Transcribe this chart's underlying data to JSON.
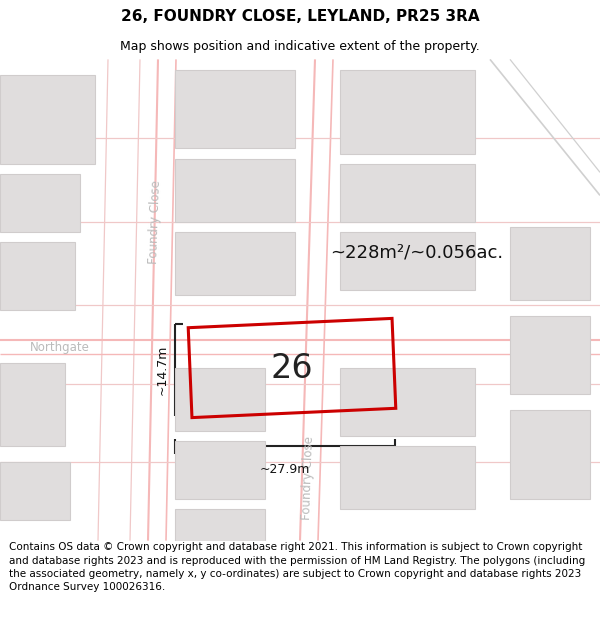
{
  "title": "26, FOUNDRY CLOSE, LEYLAND, PR25 3RA",
  "subtitle": "Map shows position and indicative extent of the property.",
  "footer": "Contains OS data © Crown copyright and database right 2021. This information is subject to Crown copyright and database rights 2023 and is reproduced with the permission of HM Land Registry. The polygons (including the associated geometry, namely x, y co-ordinates) are subject to Crown copyright and database rights 2023 Ordnance Survey 100026316.",
  "area_label": "~228m²/~0.056ac.",
  "width_label": "~27.9m",
  "height_label": "~14.7m",
  "number_label": "26",
  "bg_color": "#ffffff",
  "map_bg": "#ffffff",
  "road_color": "#f5b8b8",
  "road_color2": "#f0c8c8",
  "block_color": "#e0dddd",
  "block_outline": "#d0cccc",
  "highlight_rect_color": "#cc0000",
  "dim_line_color": "#222222",
  "road_label_color": "#bbbbbb",
  "diag_road_color": "#e8c0c0",
  "title_fontsize": 11,
  "subtitle_fontsize": 9,
  "footer_fontsize": 7.5,
  "area_fontsize": 13,
  "number_fontsize": 24,
  "road_label_fontsize": 8.5,
  "dim_fontsize": 9
}
